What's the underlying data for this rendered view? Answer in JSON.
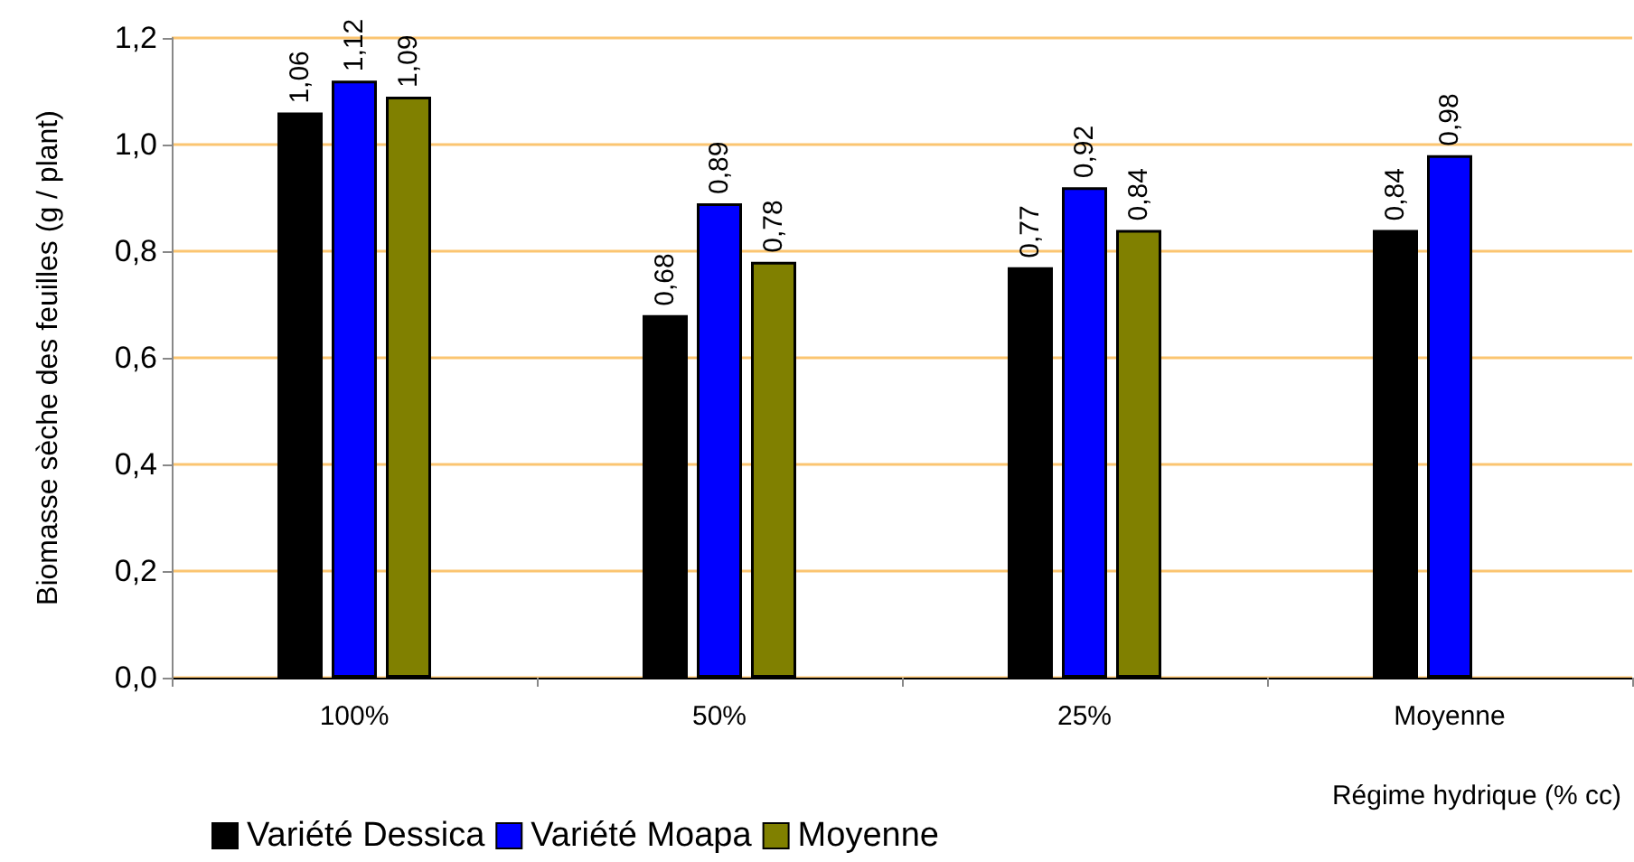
{
  "chart_data": {
    "type": "bar",
    "ylabel": "Biomasse sèche des feuilles (g / plant)",
    "xlabel": "Régime hydrique (% cc)",
    "categories": [
      "100%",
      "50%",
      "25%",
      "Moyenne"
    ],
    "series": [
      {
        "name": "Variété Dessica",
        "color": "#000000",
        "values": [
          1.06,
          0.68,
          0.77,
          0.84
        ],
        "value_labels": [
          "1,06",
          "0,68",
          "0,77",
          "0,84"
        ]
      },
      {
        "name": "Variété Moapa",
        "color": "#0000ff",
        "values": [
          1.12,
          0.89,
          0.92,
          0.98
        ],
        "value_labels": [
          "1,12",
          "0,89",
          "0,92",
          "0,98"
        ]
      },
      {
        "name": "Moyenne",
        "color": "#808000",
        "values": [
          1.09,
          0.78,
          0.84,
          null
        ],
        "value_labels": [
          "1,09",
          "0,78",
          "0,84",
          null
        ]
      }
    ],
    "ylim": [
      0,
      1.2
    ],
    "yticks": [
      {
        "value": 0,
        "label": "0,0"
      },
      {
        "value": 0.2,
        "label": "0,2"
      },
      {
        "value": 0.4,
        "label": "0,4"
      },
      {
        "value": 0.6,
        "label": "0,6"
      },
      {
        "value": 0.8,
        "label": "0,8"
      },
      {
        "value": 1,
        "label": "1,0"
      },
      {
        "value": 1.2,
        "label": "1,2"
      }
    ],
    "grid": "y",
    "legend": "bottom left"
  }
}
